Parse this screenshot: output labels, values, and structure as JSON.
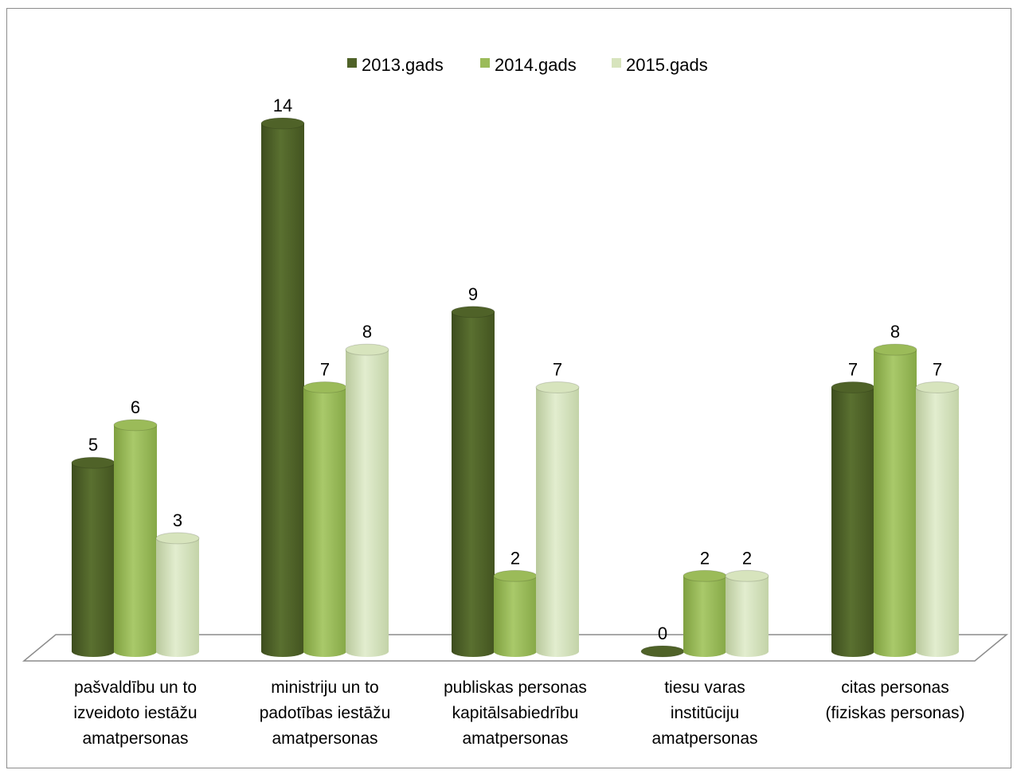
{
  "chart_data": {
    "type": "bar",
    "categories": [
      [
        "pašvaldību un to",
        "izveidoto iestāžu",
        "amatpersonas"
      ],
      [
        "ministriju un to",
        "padotības iestāžu",
        "amatpersonas"
      ],
      [
        "publiskas personas",
        "kapitālsabiedrību",
        "amatpersonas"
      ],
      [
        "tiesu varas",
        "institūciju",
        "amatpersonas"
      ],
      [
        "citas personas",
        "(fiziskas personas)"
      ]
    ],
    "series": [
      {
        "name": "2013.gads",
        "values": [
          5,
          14,
          9,
          0,
          7
        ],
        "color": "#4f6228"
      },
      {
        "name": "2014.gads",
        "values": [
          6,
          7,
          2,
          2,
          8
        ],
        "color": "#9bbb59"
      },
      {
        "name": "2015.gads",
        "values": [
          3,
          8,
          7,
          2,
          7
        ],
        "color": "#d7e4bd"
      }
    ],
    "ylim": [
      0,
      14
    ],
    "grid": false,
    "legend": "top-center",
    "style": "3d-cylinder"
  }
}
